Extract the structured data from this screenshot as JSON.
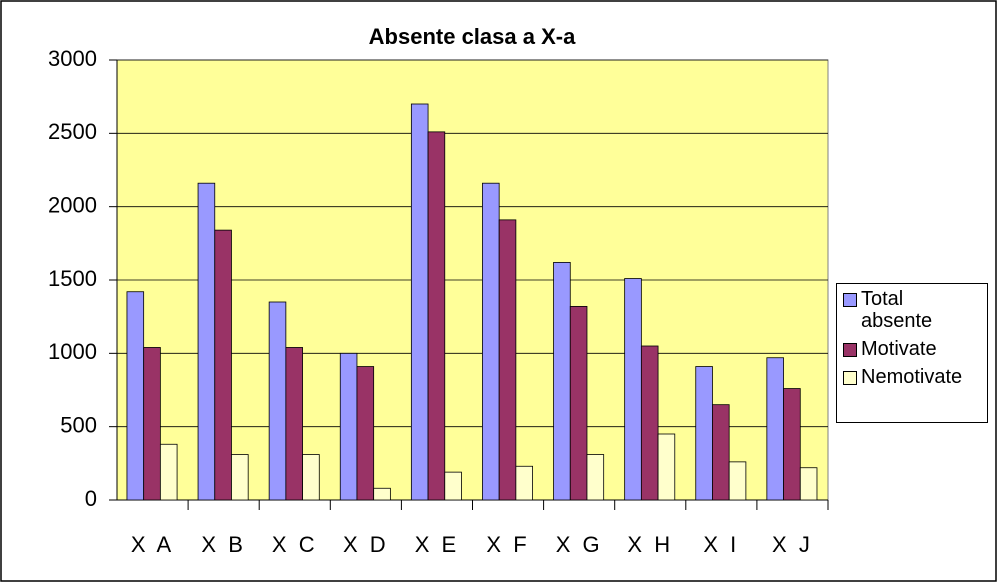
{
  "chart_data": {
    "type": "bar",
    "title": "Absente clasa a X-a",
    "categories": [
      "X A",
      "X B",
      "X C",
      "X D",
      "X E",
      "X F",
      "X G",
      "X H",
      "X I",
      "X J"
    ],
    "series": [
      {
        "name": "Total absente",
        "color": "#9999ff",
        "values": [
          1420,
          2160,
          1350,
          1000,
          2700,
          2160,
          1620,
          1510,
          910,
          970
        ]
      },
      {
        "name": "Motivate",
        "color": "#993366",
        "values": [
          1040,
          1840,
          1040,
          910,
          2510,
          1910,
          1320,
          1050,
          650,
          760
        ]
      },
      {
        "name": "Nemotivate",
        "color": "#ffffcc",
        "values": [
          380,
          310,
          310,
          80,
          190,
          230,
          310,
          450,
          260,
          220
        ]
      }
    ],
    "ylim": [
      0,
      3000
    ],
    "yticks": [
      0,
      500,
      1000,
      1500,
      2000,
      2500,
      3000
    ],
    "grid": true,
    "plot_background": "#ffff99",
    "legend": "right"
  }
}
